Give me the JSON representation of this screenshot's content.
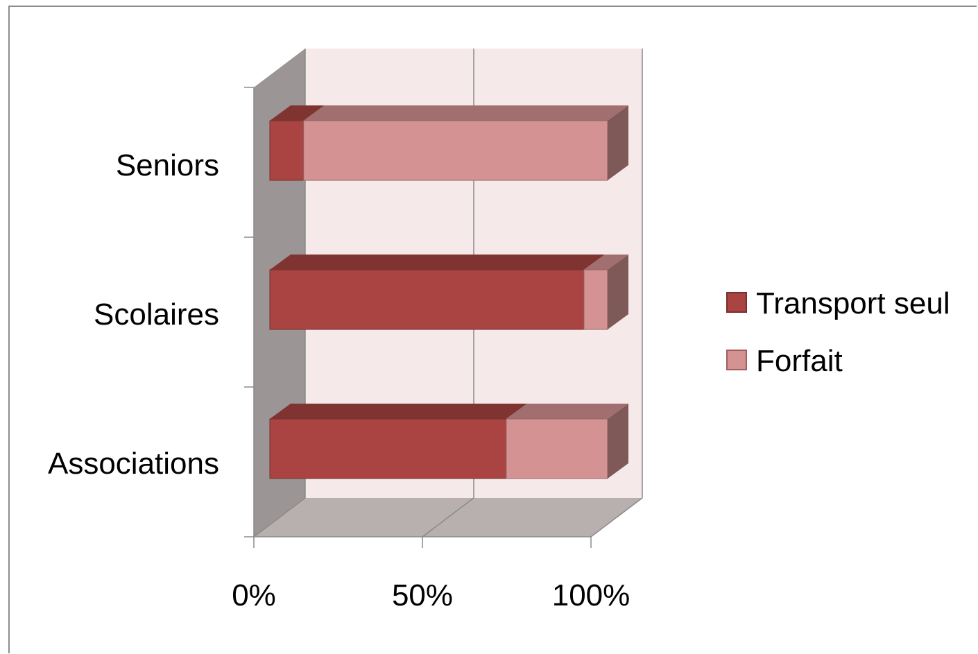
{
  "chart_data": {
    "type": "bar",
    "orientation": "horizontal",
    "stacked": "percent",
    "three_d": true,
    "categories": [
      "Seniors",
      "Scolaires",
      "Associations"
    ],
    "series": [
      {
        "name": "Transport seul",
        "values": [
          10,
          93,
          70
        ],
        "color": "#a94442"
      },
      {
        "name": "Forfait",
        "values": [
          90,
          7,
          30
        ],
        "color": "#d49292"
      }
    ],
    "x_ticks": [
      "0%",
      "50%",
      "100%"
    ],
    "xlim": [
      0,
      100
    ],
    "grid": true,
    "legend_position": "right",
    "colors": {
      "wall": "#f5e9e9",
      "side_wall": "#9c9595",
      "floor": "#b8afaf"
    }
  }
}
